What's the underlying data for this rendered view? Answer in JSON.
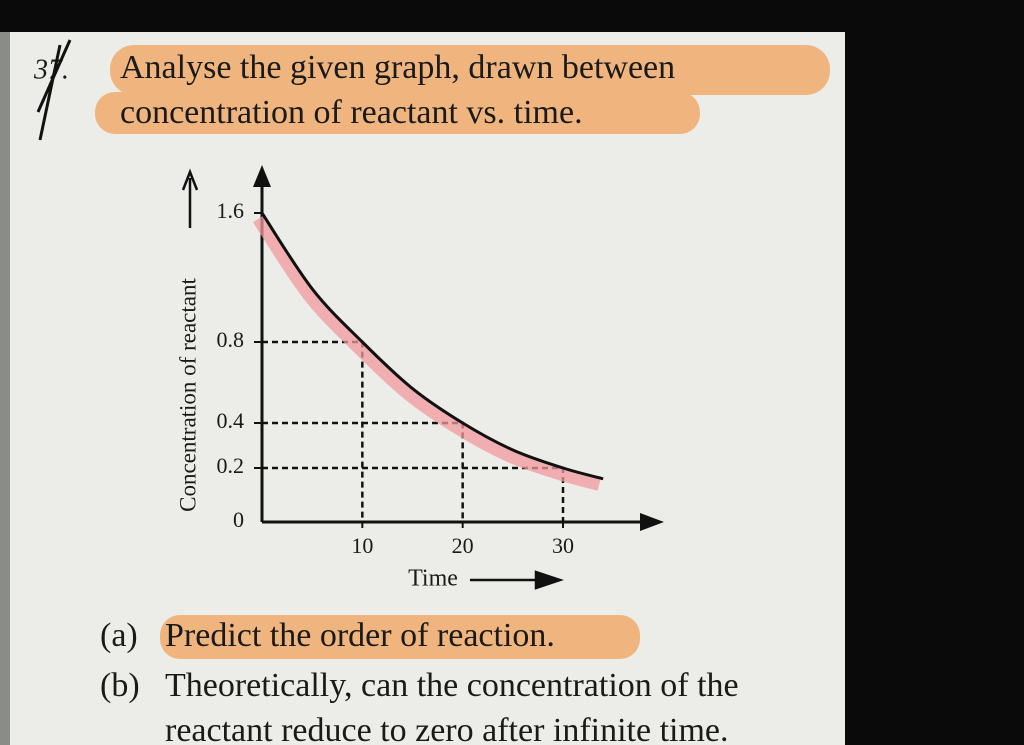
{
  "question": {
    "number": "37.",
    "lines": [
      "Analyse the given graph, drawn between",
      "concentration of reactant vs. time."
    ]
  },
  "chart_data": {
    "type": "line",
    "x": [
      0,
      5,
      10,
      15,
      20,
      25,
      30,
      34
    ],
    "series": [
      {
        "values": [
          1.6,
          1.13,
          0.8,
          0.57,
          0.4,
          0.28,
          0.2,
          0.16
        ],
        "color": "#111111"
      }
    ],
    "xlabel": "Time",
    "ylabel": "Concentration of reactant",
    "xlim": [
      0,
      38
    ],
    "xticks": [
      10,
      20,
      30
    ],
    "ylim": [
      0,
      1.8
    ],
    "yticks": [
      0,
      0.2,
      0.4,
      0.8,
      1.6
    ],
    "guides": true
  },
  "parts": [
    {
      "label": "(a)",
      "lines": [
        "Predict the order of reaction."
      ]
    },
    {
      "label": "(b)",
      "lines": [
        "Theoretically, can the concentration of the",
        "reactant reduce to zero after infinite time."
      ]
    }
  ]
}
